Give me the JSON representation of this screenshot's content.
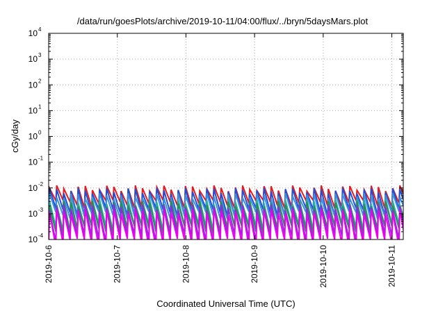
{
  "chart_data": {
    "type": "line",
    "title": "/data/run/goesPlots/archive/2019-10-11/04:00/flux/../bryn/5daysMars.plot",
    "xlabel": "Coordinated Universal Time (UTC)",
    "ylabel": "cGy/day",
    "y_scale": "log",
    "ylim": [
      0.0001,
      10000
    ],
    "xlim": [
      "2019-10-06 00:00",
      "2019-10-11 04:00"
    ],
    "grid": true,
    "x_ticks": [
      "2019-10-6",
      "2019-10-7",
      "2019-10-8",
      "2019-10-9",
      "2019-10-10",
      "2019-10-11"
    ],
    "y_ticks": [
      {
        "base": "10",
        "exp": "-4"
      },
      {
        "base": "10",
        "exp": "-3"
      },
      {
        "base": "10",
        "exp": "-2"
      },
      {
        "base": "10",
        "exp": "-1"
      },
      {
        "base": "10",
        "exp": "0"
      },
      {
        "base": "10",
        "exp": "1"
      },
      {
        "base": "10",
        "exp": "2"
      },
      {
        "base": "10",
        "exp": "3"
      },
      {
        "base": "10",
        "exp": "4"
      }
    ],
    "sawtooth_period_hours": 2.5,
    "series": [
      {
        "color": "#e41a1c",
        "peak": 0.01,
        "trough": 0.0025
      },
      {
        "color": "#1f4fd6",
        "peak": 0.008,
        "trough": 0.0012
      },
      {
        "color": "#3a8fe0",
        "peak": 0.005,
        "trough": 0.0009
      },
      {
        "color": "#2bb0a0",
        "peak": 0.003,
        "trough": 0.0003
      },
      {
        "color": "#2e8b57",
        "peak": 0.0025,
        "trough": 0.00025
      },
      {
        "color": "#8a2be2",
        "peak": 0.0018,
        "trough": 0.00012
      },
      {
        "color": "#ee00ee",
        "peak": 0.0012,
        "trough": 8e-05
      }
    ]
  }
}
